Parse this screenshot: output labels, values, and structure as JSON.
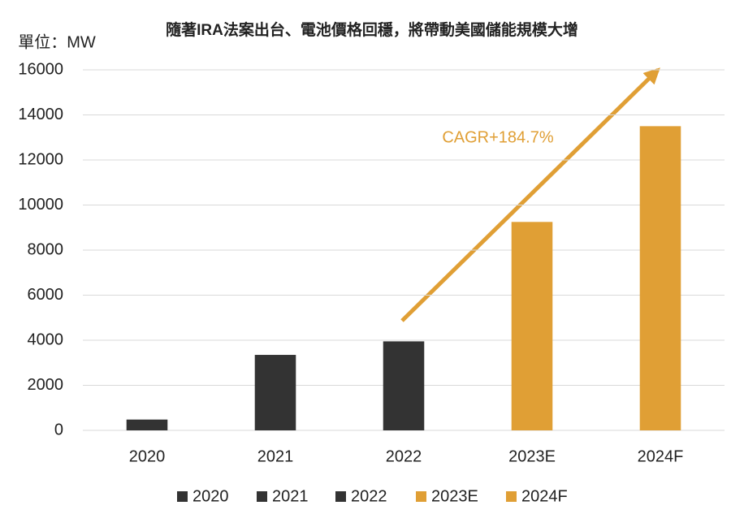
{
  "chart_data": {
    "type": "bar",
    "title": "隨著IRA法案出台、電池價格回穩，將帶動美國儲能規模大增",
    "y_label": "單位：MW",
    "annotation": "CAGR+184.7%",
    "categories": [
      "2020",
      "2021",
      "2022",
      "2023E",
      "2024F"
    ],
    "values": [
      480,
      3350,
      3950,
      9250,
      13500
    ],
    "colors": [
      "#333333",
      "#333333",
      "#333333",
      "#e09f35",
      "#e09f35"
    ],
    "ylim": [
      0,
      16000
    ],
    "yticks": [
      0,
      2000,
      4000,
      6000,
      8000,
      10000,
      12000,
      14000,
      16000
    ],
    "grid": true,
    "legend": "bottom"
  }
}
